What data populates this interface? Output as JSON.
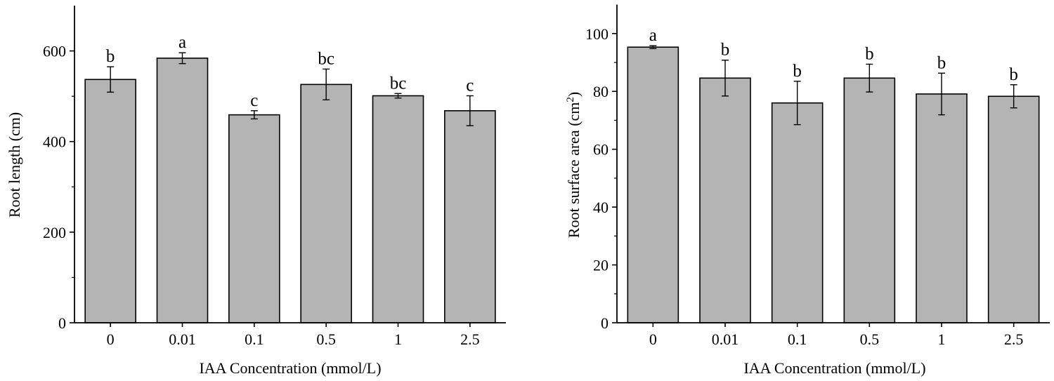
{
  "chart_data": [
    {
      "type": "bar",
      "categories": [
        "0",
        "0.01",
        "0.1",
        "0.5",
        "1",
        "2.5"
      ],
      "values": [
        537,
        584,
        459,
        526,
        501,
        468
      ],
      "errors": [
        28,
        12,
        9,
        34,
        5,
        33
      ],
      "significance": [
        "b",
        "a",
        "c",
        "bc",
        "bc",
        "c"
      ],
      "xlabel": "IAA Concentration (mmol/L)",
      "ylabel": "Root length (cm)",
      "ylabel_sup": "",
      "ylabel_tail": "",
      "ylim": [
        0,
        700
      ],
      "yticks": [
        0,
        200,
        400,
        600
      ],
      "bar_color": "#b4b4b4"
    },
    {
      "type": "bar",
      "categories": [
        "0",
        "0.01",
        "0.1",
        "0.5",
        "1",
        "2.5"
      ],
      "values": [
        95.3,
        84.6,
        76.0,
        84.6,
        79.1,
        78.3
      ],
      "errors": [
        0.5,
        6.2,
        7.5,
        4.8,
        7.2,
        4.0
      ],
      "significance": [
        "a",
        "b",
        "b",
        "b",
        "b",
        "b"
      ],
      "xlabel": "IAA Concentration (mmol/L)",
      "ylabel": "Root surface area (cm",
      "ylabel_sup": "2",
      "ylabel_tail": ")",
      "ylim": [
        0,
        110
      ],
      "yticks": [
        0,
        20,
        40,
        60,
        80,
        100
      ],
      "bar_color": "#b4b4b4"
    }
  ]
}
